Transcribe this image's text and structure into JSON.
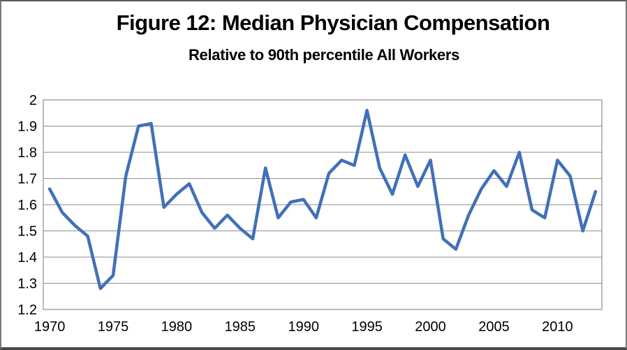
{
  "chart_data": {
    "type": "line",
    "title": "Figure 12: Median Physician Compensation",
    "subtitle": "Relative to 90th percentile All Workers",
    "x": [
      1970,
      1971,
      1972,
      1973,
      1974,
      1975,
      1976,
      1977,
      1978,
      1979,
      1980,
      1981,
      1982,
      1983,
      1984,
      1985,
      1986,
      1987,
      1988,
      1989,
      1990,
      1991,
      1992,
      1993,
      1994,
      1995,
      1996,
      1997,
      1998,
      1999,
      2000,
      2001,
      2002,
      2003,
      2004,
      2005,
      2006,
      2007,
      2008,
      2009,
      2010,
      2011,
      2012,
      2013
    ],
    "values": [
      1.66,
      1.57,
      1.52,
      1.48,
      1.28,
      1.33,
      1.71,
      1.9,
      1.91,
      1.59,
      1.64,
      1.68,
      1.57,
      1.51,
      1.56,
      1.51,
      1.47,
      1.74,
      1.55,
      1.61,
      1.62,
      1.55,
      1.72,
      1.77,
      1.75,
      1.96,
      1.74,
      1.64,
      1.79,
      1.67,
      1.77,
      1.47,
      1.43,
      1.56,
      1.66,
      1.73,
      1.67,
      1.8,
      1.58,
      1.55,
      1.77,
      1.71,
      1.5,
      1.65
    ],
    "x_tick_years": [
      1970,
      1975,
      1980,
      1985,
      1990,
      1995,
      2000,
      2005,
      2010
    ],
    "x_tick_labels": [
      "1970",
      "1975",
      "1980",
      "1985",
      "1990",
      "1995",
      "2000",
      "2005",
      "2010"
    ],
    "y_tick_values": [
      2,
      1.9,
      1.8,
      1.7,
      1.6,
      1.5,
      1.4,
      1.3,
      1.2
    ],
    "y_tick_labels": [
      "2",
      "1.9",
      "1.8",
      "1.7",
      "1.6",
      "1.5",
      "1.4",
      "1.3",
      "1.2"
    ],
    "ylim": [
      1.2,
      2.0
    ],
    "grid": true,
    "legend": "none",
    "line_color": "#4170B8",
    "grid_color": "#8E8E8E",
    "text_color": "#000000"
  }
}
